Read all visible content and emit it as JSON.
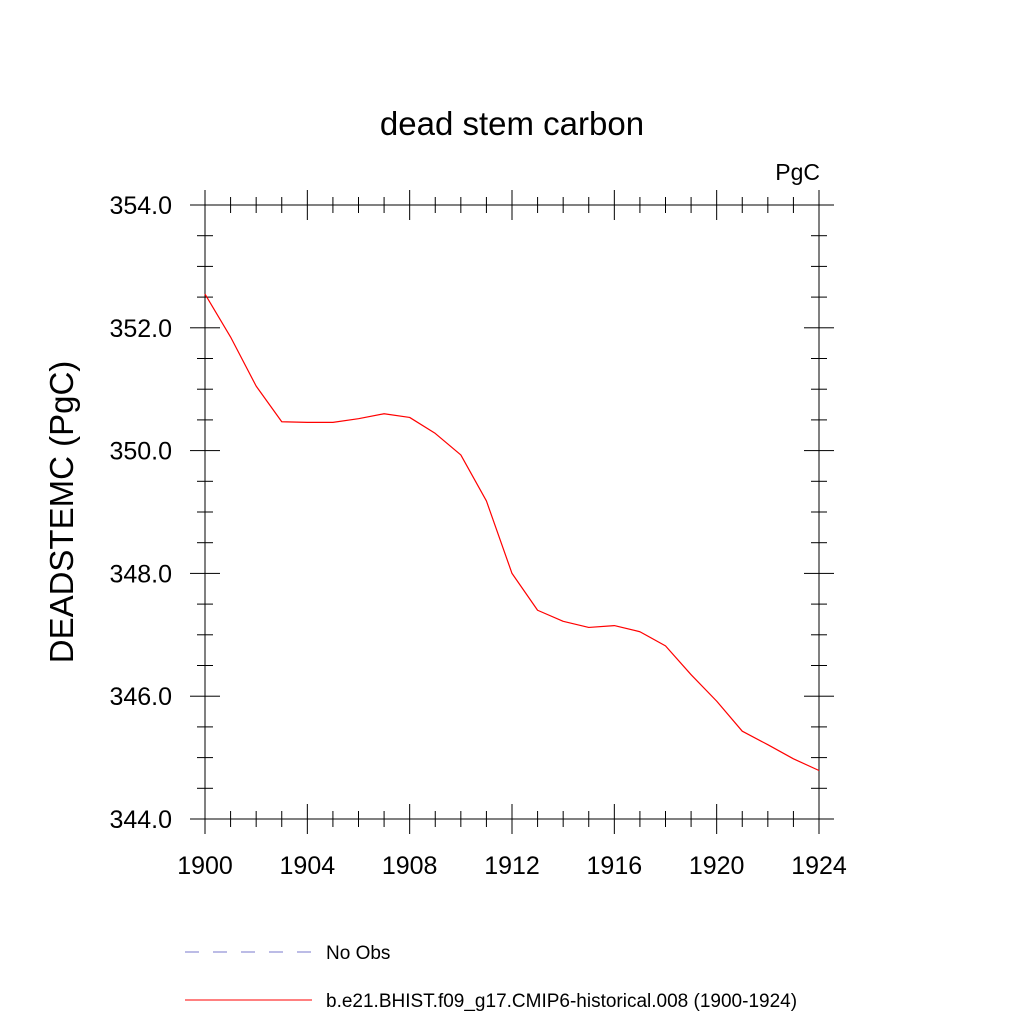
{
  "chart_data": {
    "type": "line",
    "title": "dead stem carbon",
    "units_label": "PgC",
    "ylabel": "DEADSTEMC  (PgC)",
    "xlabel": "",
    "xlim": [
      1900,
      1924
    ],
    "ylim": [
      344.0,
      354.0
    ],
    "x_ticks": [
      1900,
      1904,
      1908,
      1912,
      1916,
      1920,
      1924
    ],
    "x_tick_labels": [
      "1900",
      "1904",
      "1908",
      "1912",
      "1916",
      "1920",
      "1924"
    ],
    "y_ticks": [
      344.0,
      346.0,
      348.0,
      350.0,
      352.0,
      354.0
    ],
    "y_tick_labels": [
      "344.0",
      "346.0",
      "348.0",
      "350.0",
      "352.0",
      "354.0"
    ],
    "grid": false,
    "legend_position": "bottom",
    "series": [
      {
        "name": "b.e21.BHIST.f09_g17.CMIP6-historical.008 (1900-1924)",
        "color": "#ff0000",
        "dash": "solid",
        "x": [
          1900,
          1901,
          1902,
          1903,
          1904,
          1905,
          1906,
          1907,
          1908,
          1909,
          1910,
          1911,
          1912,
          1913,
          1914,
          1915,
          1916,
          1917,
          1918,
          1919,
          1920,
          1921,
          1922,
          1923,
          1924
        ],
        "y": [
          352.55,
          351.85,
          351.05,
          350.47,
          350.46,
          350.46,
          350.52,
          350.6,
          350.54,
          350.28,
          349.93,
          349.18,
          348.0,
          347.4,
          347.22,
          347.12,
          347.15,
          347.05,
          346.82,
          346.35,
          345.92,
          345.43,
          345.21,
          344.98,
          344.79
        ]
      }
    ],
    "legend": [
      {
        "label": "No Obs",
        "color": "#7a7acc",
        "dash": "dashed"
      },
      {
        "label": "b.e21.BHIST.f09_g17.CMIP6-historical.008 (1900-1924)",
        "color": "#ff0000",
        "dash": "solid"
      }
    ]
  }
}
